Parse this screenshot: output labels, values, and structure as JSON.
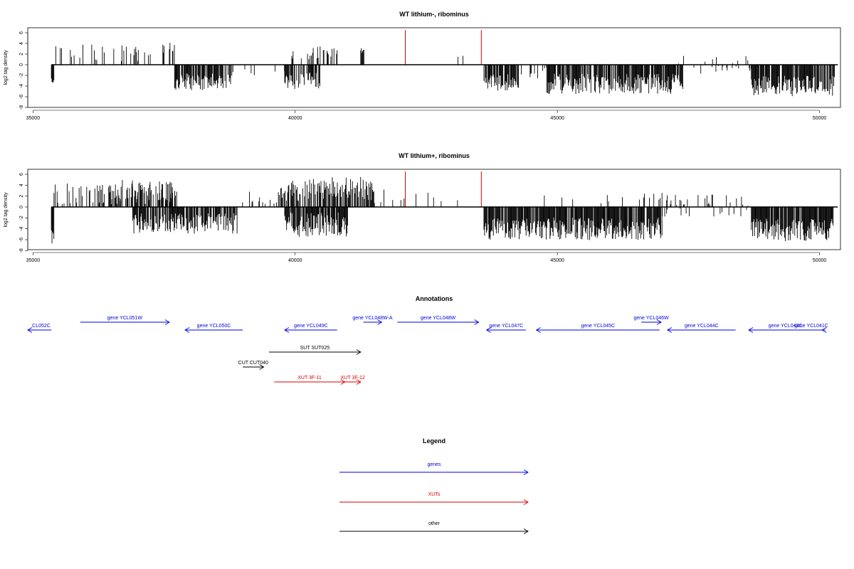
{
  "chart_data": [
    {
      "type": "bar",
      "title": "WT lithium-, ribominus",
      "ylabel": "log2 tag density",
      "xlim": [
        34900,
        50400
      ],
      "ylim": [
        -8,
        7
      ],
      "xticks": [
        35000,
        40000,
        45000,
        50000
      ],
      "yticks": [
        -8,
        -6,
        -4,
        -2,
        0,
        2,
        4,
        6
      ],
      "highlight_positions": [
        42100,
        43550
      ],
      "highlight_value": 6.5,
      "highlight_color": "#dd0000",
      "bar_color": "#000000",
      "segments": [
        {
          "start": 35350,
          "end": 35400,
          "mean": -3.0,
          "spread": 0.4,
          "density": 1.0
        },
        {
          "start": 35400,
          "end": 37750,
          "mean": 2.2,
          "spread": 1.0,
          "density": 0.12
        },
        {
          "start": 37600,
          "end": 37700,
          "mean": 3.4,
          "spread": 0.5,
          "density": 0.6
        },
        {
          "start": 37700,
          "end": 38800,
          "mean": -3.2,
          "spread": 1.0,
          "density": 0.85
        },
        {
          "start": 38800,
          "end": 39800,
          "mean": -1.2,
          "spread": 0.6,
          "density": 0.05
        },
        {
          "start": 39800,
          "end": 40500,
          "mean": -3.0,
          "spread": 1.0,
          "density": 0.7
        },
        {
          "start": 39900,
          "end": 40800,
          "mean": 2.2,
          "spread": 0.8,
          "density": 0.25
        },
        {
          "start": 41250,
          "end": 41350,
          "mean": 2.5,
          "spread": 0.4,
          "density": 0.6
        },
        {
          "start": 42900,
          "end": 43450,
          "mean": 2.0,
          "spread": 0.6,
          "density": 0.05
        },
        {
          "start": 43600,
          "end": 44300,
          "mean": -3.4,
          "spread": 1.0,
          "density": 0.8
        },
        {
          "start": 44300,
          "end": 44800,
          "mean": -1.5,
          "spread": 0.7,
          "density": 0.3
        },
        {
          "start": 44800,
          "end": 47400,
          "mean": -3.6,
          "spread": 1.2,
          "density": 0.85
        },
        {
          "start": 47400,
          "end": 48700,
          "mean": -1.0,
          "spread": 0.6,
          "density": 0.12
        },
        {
          "start": 47300,
          "end": 48700,
          "mean": 1.0,
          "spread": 0.5,
          "density": 0.05
        },
        {
          "start": 48700,
          "end": 50300,
          "mean": -4.0,
          "spread": 1.2,
          "density": 0.85
        }
      ]
    },
    {
      "type": "bar",
      "title": "WT lithium+, ribominus",
      "ylabel": "log2 tag density",
      "xlim": [
        34900,
        50400
      ],
      "ylim": [
        -8,
        7
      ],
      "xticks": [
        35000,
        40000,
        45000,
        50000
      ],
      "yticks": [
        -8,
        -6,
        -4,
        -2,
        0,
        2,
        4,
        6
      ],
      "highlight_positions": [
        42100,
        43550
      ],
      "highlight_value": 6.5,
      "highlight_color": "#dd0000",
      "bar_color": "#000000",
      "segments": [
        {
          "start": 35350,
          "end": 35400,
          "mean": -5.5,
          "spread": 0.8,
          "density": 1.0
        },
        {
          "start": 35400,
          "end": 37750,
          "mean": 2.4,
          "spread": 1.2,
          "density": 0.35
        },
        {
          "start": 36500,
          "end": 37700,
          "mean": 3.2,
          "spread": 1.2,
          "density": 0.5
        },
        {
          "start": 36900,
          "end": 38900,
          "mean": -3.0,
          "spread": 1.2,
          "density": 0.8
        },
        {
          "start": 38900,
          "end": 39800,
          "mean": 1.8,
          "spread": 0.8,
          "density": 0.2
        },
        {
          "start": 39800,
          "end": 41000,
          "mean": -3.2,
          "spread": 1.4,
          "density": 0.85
        },
        {
          "start": 39700,
          "end": 41500,
          "mean": 3.3,
          "spread": 1.4,
          "density": 0.7
        },
        {
          "start": 41500,
          "end": 43450,
          "mean": 2.0,
          "spread": 0.8,
          "density": 0.1
        },
        {
          "start": 43600,
          "end": 47000,
          "mean": -4.0,
          "spread": 1.3,
          "density": 0.9
        },
        {
          "start": 44500,
          "end": 47000,
          "mean": 1.5,
          "spread": 0.7,
          "density": 0.1
        },
        {
          "start": 47000,
          "end": 48700,
          "mean": 1.2,
          "spread": 0.7,
          "density": 0.15
        },
        {
          "start": 47000,
          "end": 48700,
          "mean": -1.0,
          "spread": 0.5,
          "density": 0.1
        },
        {
          "start": 48700,
          "end": 50300,
          "mean": -4.2,
          "spread": 1.3,
          "density": 0.9
        }
      ]
    },
    {
      "type": "annotation-track",
      "title": "Annotations",
      "xlim": [
        34900,
        50400
      ],
      "features": [
        {
          "label": "CL052C",
          "start": 34600,
          "end": 35350,
          "strand": "-",
          "row": 2,
          "color": "#0000dd"
        },
        {
          "label": "gene YCL051W",
          "start": 35900,
          "end": 37600,
          "strand": "+",
          "row": 1,
          "color": "#0000dd"
        },
        {
          "label": "gene YCL050C",
          "start": 37900,
          "end": 39000,
          "strand": "-",
          "row": 2,
          "color": "#0000dd"
        },
        {
          "label": "gene YCL049C",
          "start": 39800,
          "end": 40800,
          "strand": "-",
          "row": 2,
          "color": "#0000dd"
        },
        {
          "label": "gene YCL048W-A",
          "start": 41300,
          "end": 41650,
          "strand": "+",
          "row": 1,
          "color": "#0000dd"
        },
        {
          "label": "gene YCL048W",
          "start": 41950,
          "end": 43500,
          "strand": "+",
          "row": 1,
          "color": "#0000dd"
        },
        {
          "label": "gene YCL047C",
          "start": 43650,
          "end": 44400,
          "strand": "-",
          "row": 2,
          "color": "#0000dd"
        },
        {
          "label": "gene YCL045C",
          "start": 44600,
          "end": 46950,
          "strand": "-",
          "row": 2,
          "color": "#0000dd"
        },
        {
          "label": "gene YCL046W",
          "start": 46600,
          "end": 46980,
          "strand": "+",
          "row": 1,
          "color": "#0000dd"
        },
        {
          "label": "gene YCL044C",
          "start": 47100,
          "end": 48400,
          "strand": "-",
          "row": 2,
          "color": "#0000dd"
        },
        {
          "label": "gene YCL043C",
          "start": 48650,
          "end": 50050,
          "strand": "-",
          "row": 2,
          "color": "#0000dd"
        },
        {
          "label": "gene YCL041C",
          "start": 50050,
          "end": 50700,
          "strand": "-",
          "row": 2,
          "color": "#0000dd"
        },
        {
          "label": "SUT SUT025",
          "start": 39500,
          "end": 41250,
          "strand": "+",
          "row": 3,
          "color": "#000000"
        },
        {
          "label": "CUT CUT040",
          "start": 39000,
          "end": 39400,
          "strand": "+",
          "row": 4,
          "color": "#000000"
        },
        {
          "label": "XUT 3F-11",
          "start": 39600,
          "end": 40950,
          "strand": "+",
          "row": 5,
          "color": "#dd0000"
        },
        {
          "label": "XUT 3F-12",
          "start": 40950,
          "end": 41250,
          "strand": "+",
          "row": 5,
          "color": "#dd0000"
        }
      ]
    }
  ],
  "legend": {
    "title": "Legend",
    "items": [
      {
        "label": "genes",
        "color": "#0000dd"
      },
      {
        "label": "XUTs",
        "color": "#dd0000"
      },
      {
        "label": "other",
        "color": "#000000"
      }
    ]
  }
}
